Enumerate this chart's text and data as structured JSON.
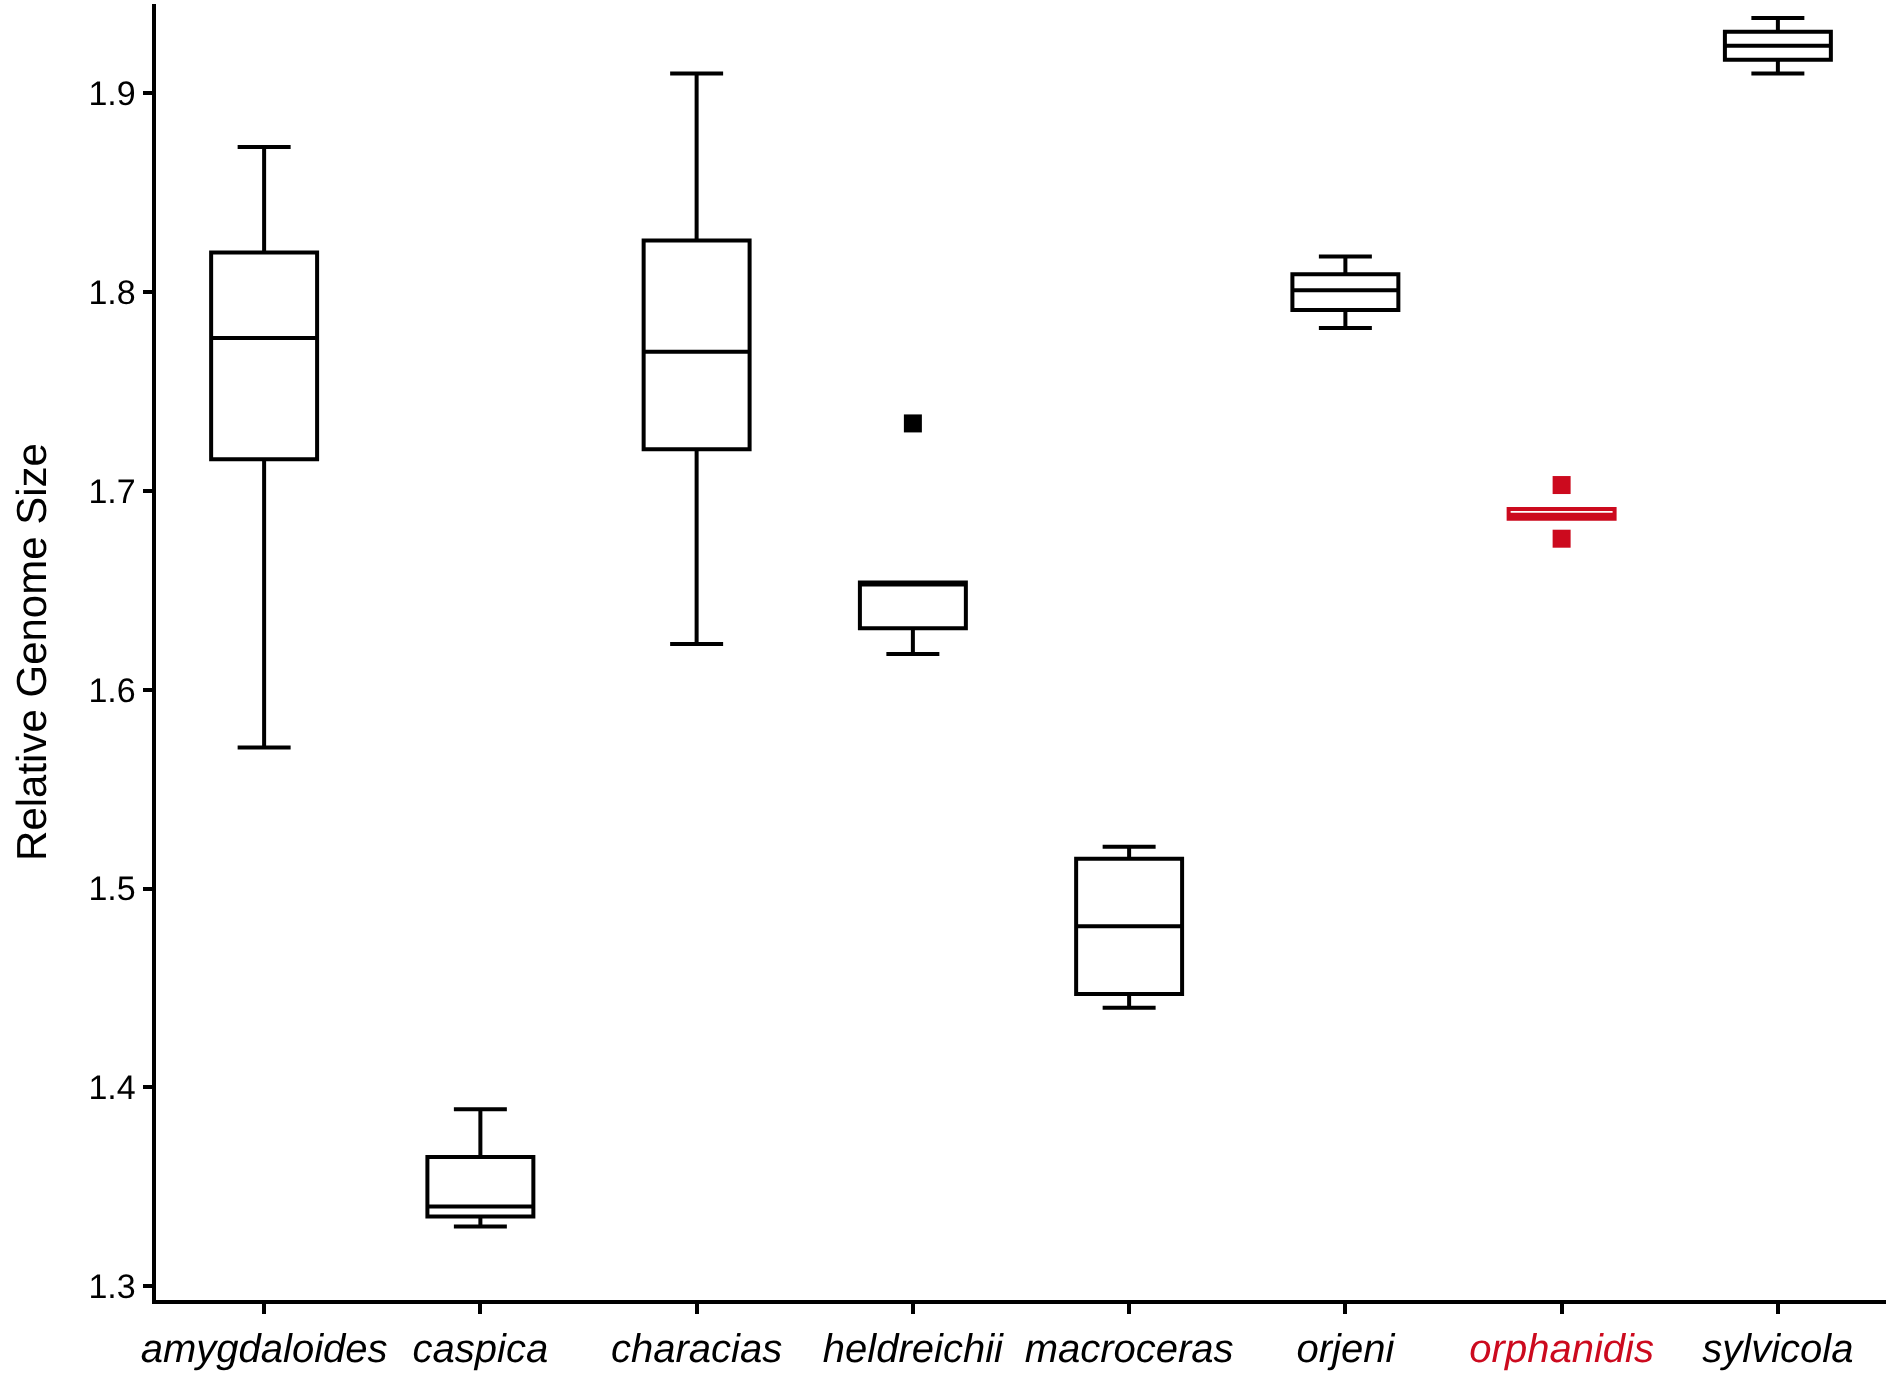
{
  "chart_data": {
    "type": "box",
    "ylabel": "Relative Genome Size",
    "categories": [
      "amygdaloides",
      "caspica",
      "characias",
      "heldreichii",
      "macroceras",
      "orjeni",
      "orphanidis",
      "sylvicola"
    ],
    "colors": [
      "#000000",
      "#000000",
      "#000000",
      "#000000",
      "#000000",
      "#000000",
      "#cc0a1e",
      "#000000"
    ],
    "boxes": [
      {
        "low": 1.571,
        "q1": 1.716,
        "median": 1.777,
        "q3": 1.82,
        "high": 1.873
      },
      {
        "low": 1.33,
        "q1": 1.335,
        "median": 1.34,
        "q3": 1.365,
        "high": 1.389
      },
      {
        "low": 1.623,
        "q1": 1.721,
        "median": 1.77,
        "q3": 1.826,
        "high": 1.91
      },
      {
        "low": 1.618,
        "q1": 1.631,
        "median": 1.654,
        "q3": 1.654,
        "high": 1.654,
        "outliers": [
          1.734
        ]
      },
      {
        "low": 1.44,
        "q1": 1.447,
        "median": 1.481,
        "q3": 1.515,
        "high": 1.521
      },
      {
        "low": 1.782,
        "q1": 1.791,
        "median": 1.801,
        "q3": 1.809,
        "high": 1.818
      },
      {
        "low": 1.686,
        "q1": 1.686,
        "median": 1.688,
        "q3": 1.691,
        "high": 1.691,
        "outliers": [
          1.703,
          1.676
        ]
      },
      {
        "low": 1.91,
        "q1": 1.917,
        "median": 1.924,
        "q3": 1.931,
        "high": 1.938
      }
    ],
    "marker": "square",
    "ylim": [
      1.293,
      1.945
    ],
    "yticks": [
      1.3,
      1.4,
      1.5,
      1.6,
      1.7,
      1.8,
      1.9
    ]
  }
}
